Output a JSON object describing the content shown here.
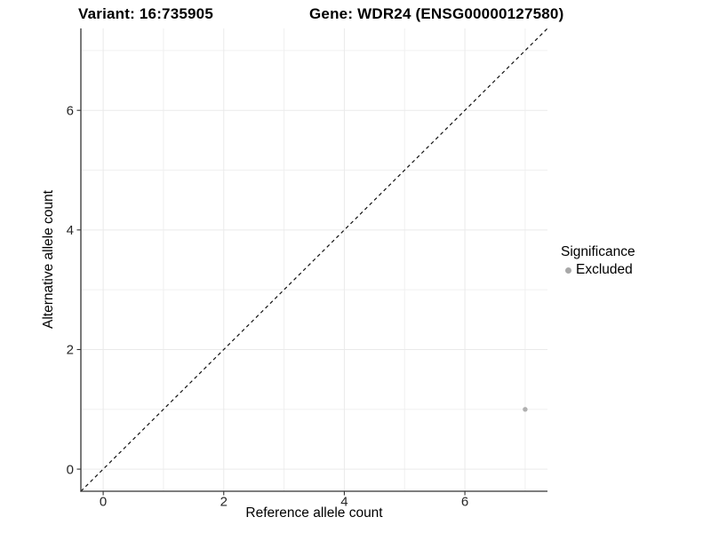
{
  "header": {
    "variant_title": "Variant: 16:735905",
    "gene_title": "Gene: WDR24 (ENSG00000127580)"
  },
  "legend": {
    "title": "Significance",
    "items": [
      {
        "label": "Excluded",
        "color": "#a8a8a8",
        "marker": "dot-icon"
      }
    ]
  },
  "colors": {
    "point": "#b0b0b0",
    "legend_dot": "#a8a8a8",
    "grid_major": "#eaeaea",
    "grid_minor": "#f0f0f0",
    "axis_line": "#333333",
    "tick_mark": "#333333",
    "tick_label": "#262626",
    "identity_line": "#111111",
    "background": "#ffffff"
  },
  "chart_data": {
    "type": "scatter",
    "title": "Variant: 16:735905    Gene: WDR24 (ENSG00000127580)",
    "xlabel": "Reference allele count",
    "ylabel": "Alternative allele count",
    "xlim": [
      -0.37,
      7.37
    ],
    "ylim": [
      -0.37,
      7.37
    ],
    "x_ticks": [
      0,
      2,
      4,
      6
    ],
    "y_ticks": [
      0,
      2,
      4,
      6
    ],
    "x_minor_ticks": [
      1,
      3,
      5,
      7
    ],
    "y_minor_ticks": [
      1,
      3,
      5,
      7
    ],
    "grid": true,
    "series": [
      {
        "name": "Excluded",
        "color": "#b0b0b0",
        "points": [
          {
            "x": 7,
            "y": 1
          }
        ]
      }
    ],
    "reference_line": {
      "type": "identity",
      "equation": "y = x",
      "style": "dashed",
      "from": [
        -0.37,
        -0.37
      ],
      "to": [
        7.37,
        7.37
      ]
    },
    "legend": {
      "title": "Significance",
      "position": "right",
      "entries": [
        "Excluded"
      ]
    }
  }
}
